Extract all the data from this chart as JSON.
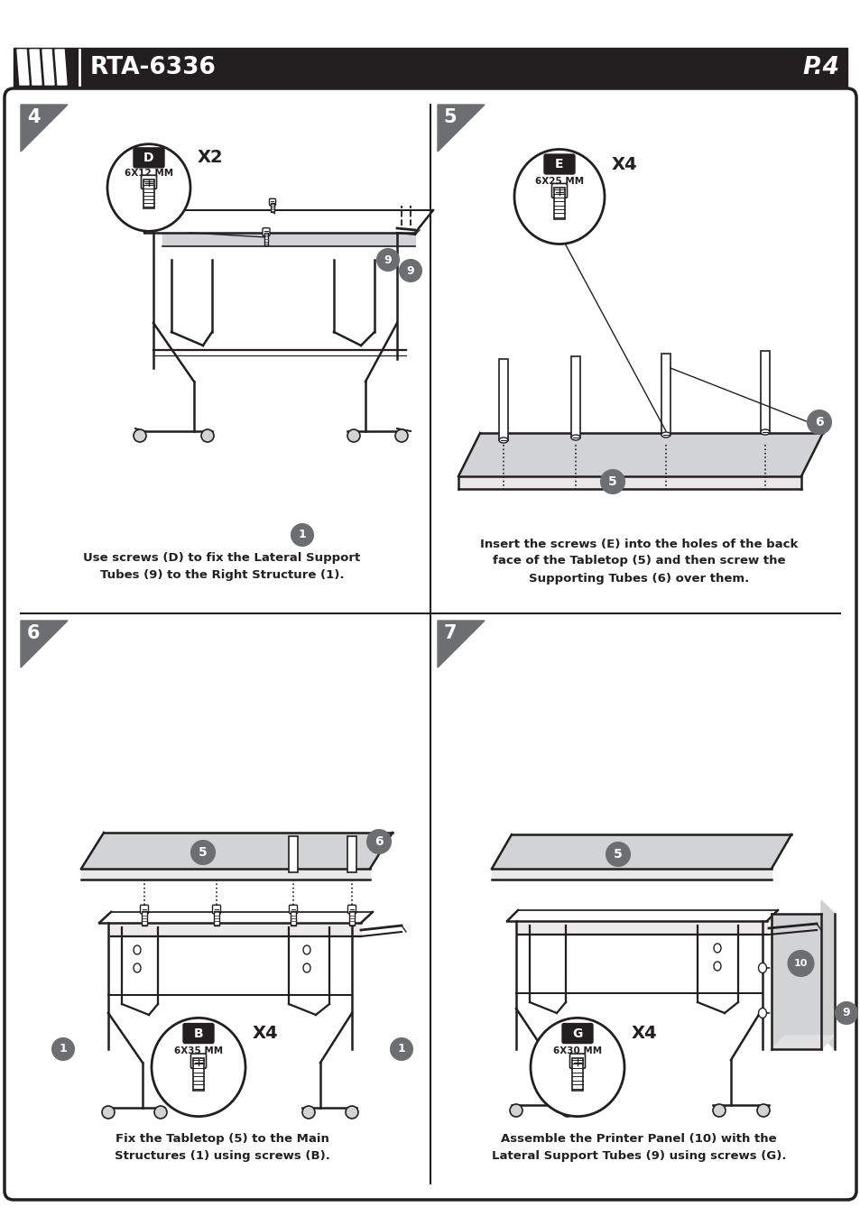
{
  "title": "RTA-6336",
  "page": "P.4",
  "bg_color": "#ffffff",
  "dark": "#231f20",
  "gray": "#6d6e71",
  "light_gray": "#d1d3d4",
  "panels": [
    {
      "id": "4",
      "caption": "Use screws (D) to fix the Lateral Support\nTubes (9) to the Right Structure (1).",
      "screw_label": "D",
      "screw_size": "6X12 MM",
      "screw_qty": "X2"
    },
    {
      "id": "5",
      "caption": "Insert the screws (E) into the holes of the back\nface of the Tabletop (5) and then screw the\nSupporting Tubes (6) over them.",
      "screw_label": "E",
      "screw_size": "6X25 MM",
      "screw_qty": "X4"
    },
    {
      "id": "6",
      "caption": "Fix the Tabletop (5) to the Main\nStructures (1) using screws (B).",
      "screw_label": "B",
      "screw_size": "6X35 MM",
      "screw_qty": "X4"
    },
    {
      "id": "7",
      "caption": "Assemble the Printer Panel (10) with the\nLateral Support Tubes (9) using screws (G).",
      "screw_label": "G",
      "screw_size": "6X30 MM",
      "screw_qty": "X4"
    }
  ]
}
